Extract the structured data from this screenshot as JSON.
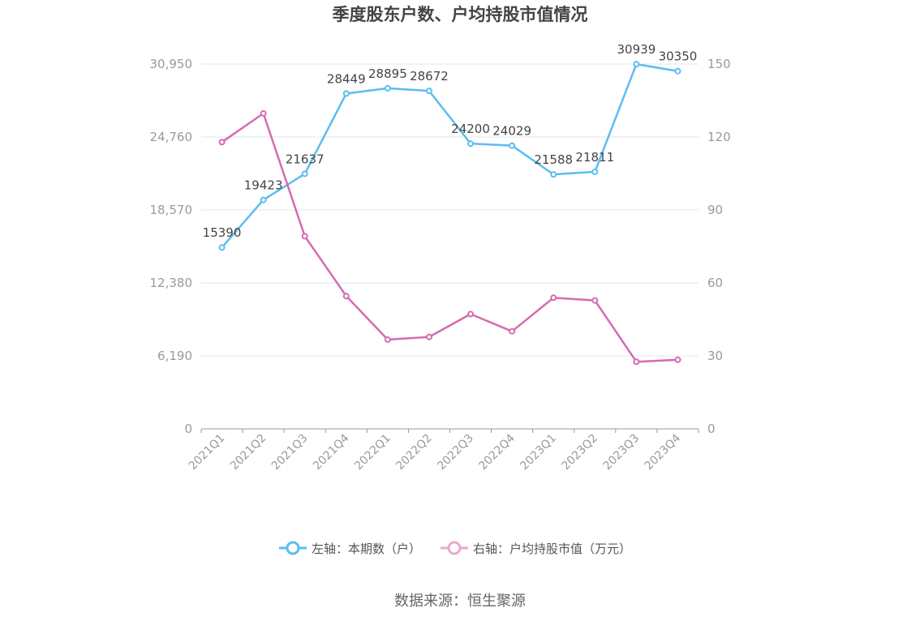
{
  "chart_data": {
    "type": "line",
    "title": "季度股东户数、户均持股市值情况",
    "categories": [
      "2021Q1",
      "2021Q2",
      "2021Q3",
      "2021Q4",
      "2022Q1",
      "2022Q2",
      "2022Q3",
      "2022Q4",
      "2023Q1",
      "2023Q2",
      "2023Q3",
      "2023Q4"
    ],
    "left_axis": {
      "ticks": [
        "0",
        "6,190",
        "12,380",
        "18,570",
        "24,760",
        "30,950"
      ],
      "ylim": [
        0,
        30950
      ]
    },
    "right_axis": {
      "ticks": [
        "0",
        "30",
        "60",
        "90",
        "120",
        "150"
      ],
      "ylim": [
        0,
        150
      ]
    },
    "series": [
      {
        "name": "左轴：本期数（户）",
        "axis": "left",
        "color": "#5bbdf0",
        "values": [
          15390,
          19423,
          21637,
          28449,
          28895,
          28672,
          24200,
          24029,
          21588,
          21811,
          30939,
          30350
        ],
        "labels": [
          "15390",
          "19423",
          "21637",
          "28449",
          "28895",
          "28672",
          "24200",
          "24029",
          "21588",
          "21811",
          "30939",
          "30350"
        ]
      },
      {
        "name": "右轴：户均持股市值（万元）",
        "axis": "right",
        "color": "#d46bb0",
        "values": [
          117.9,
          129.7,
          79.2,
          54.6,
          36.7,
          37.8,
          47.2,
          40.1,
          53.9,
          52.8,
          27.6,
          28.4
        ]
      }
    ],
    "grid": true,
    "legend_position": "bottom"
  },
  "source": "数据来源：恒生聚源"
}
